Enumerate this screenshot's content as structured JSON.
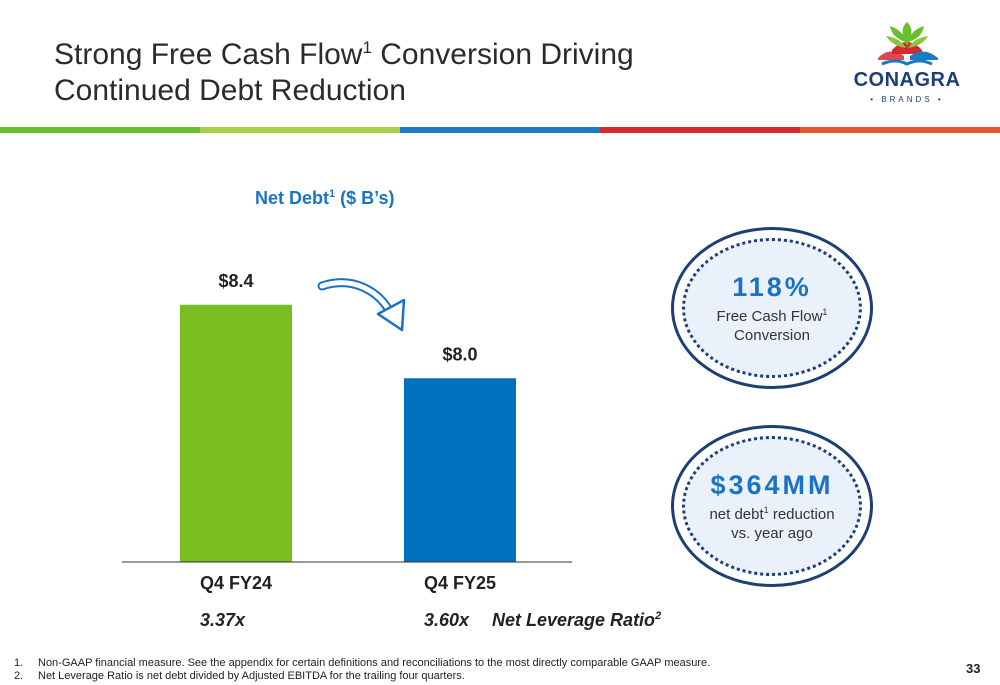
{
  "header": {
    "title_line1_a": "Strong Free Cash Flow",
    "title_sup": "1",
    "title_line1_b": " Conversion Driving",
    "title_line2": "Continued Debt Reduction"
  },
  "logo": {
    "word": "CONAGRA",
    "sub": "• BRANDS •"
  },
  "colors": {
    "stripe": [
      "#6abf2e",
      "#a8cf45",
      "#1a7ac4",
      "#d7282f",
      "#e8572a"
    ],
    "bar_fy24": "#78be20",
    "bar_fy25": "#0071bc",
    "accent": "#1a73c5",
    "navy": "#1d3f73"
  },
  "chart_data": {
    "type": "bar",
    "title": "Net Debt",
    "title_sup": "1",
    "title_suffix": " ($ B’s)",
    "categories": [
      "Q4 FY24",
      "Q4 FY25"
    ],
    "values": [
      8.4,
      8.0
    ],
    "data_labels": [
      "$8.4",
      "$8.0"
    ],
    "ylim": [
      7.0,
      8.6
    ],
    "grid": false,
    "annotation": "arrow-down"
  },
  "leverage": {
    "fy24": "3.37x",
    "fy25": "3.60x",
    "label": "Net Leverage Ratio",
    "label_sup": "2"
  },
  "callouts": [
    {
      "big": "118%",
      "line1": "Free Cash Flow",
      "line1_sup": "1",
      "line2": "Conversion"
    },
    {
      "big": "$364MM",
      "line1_a": "net debt",
      "line1_sup": "1",
      "line1_b": " reduction",
      "line2": "vs. year ago"
    }
  ],
  "footnotes": [
    {
      "num": "1.",
      "text": "Non-GAAP financial measure. See the appendix for certain definitions and reconciliations to the most directly comparable GAAP measure."
    },
    {
      "num": "2.",
      "text": "Net Leverage Ratio is net debt divided by Adjusted EBITDA for the trailing four quarters."
    }
  ],
  "page_number": "33"
}
